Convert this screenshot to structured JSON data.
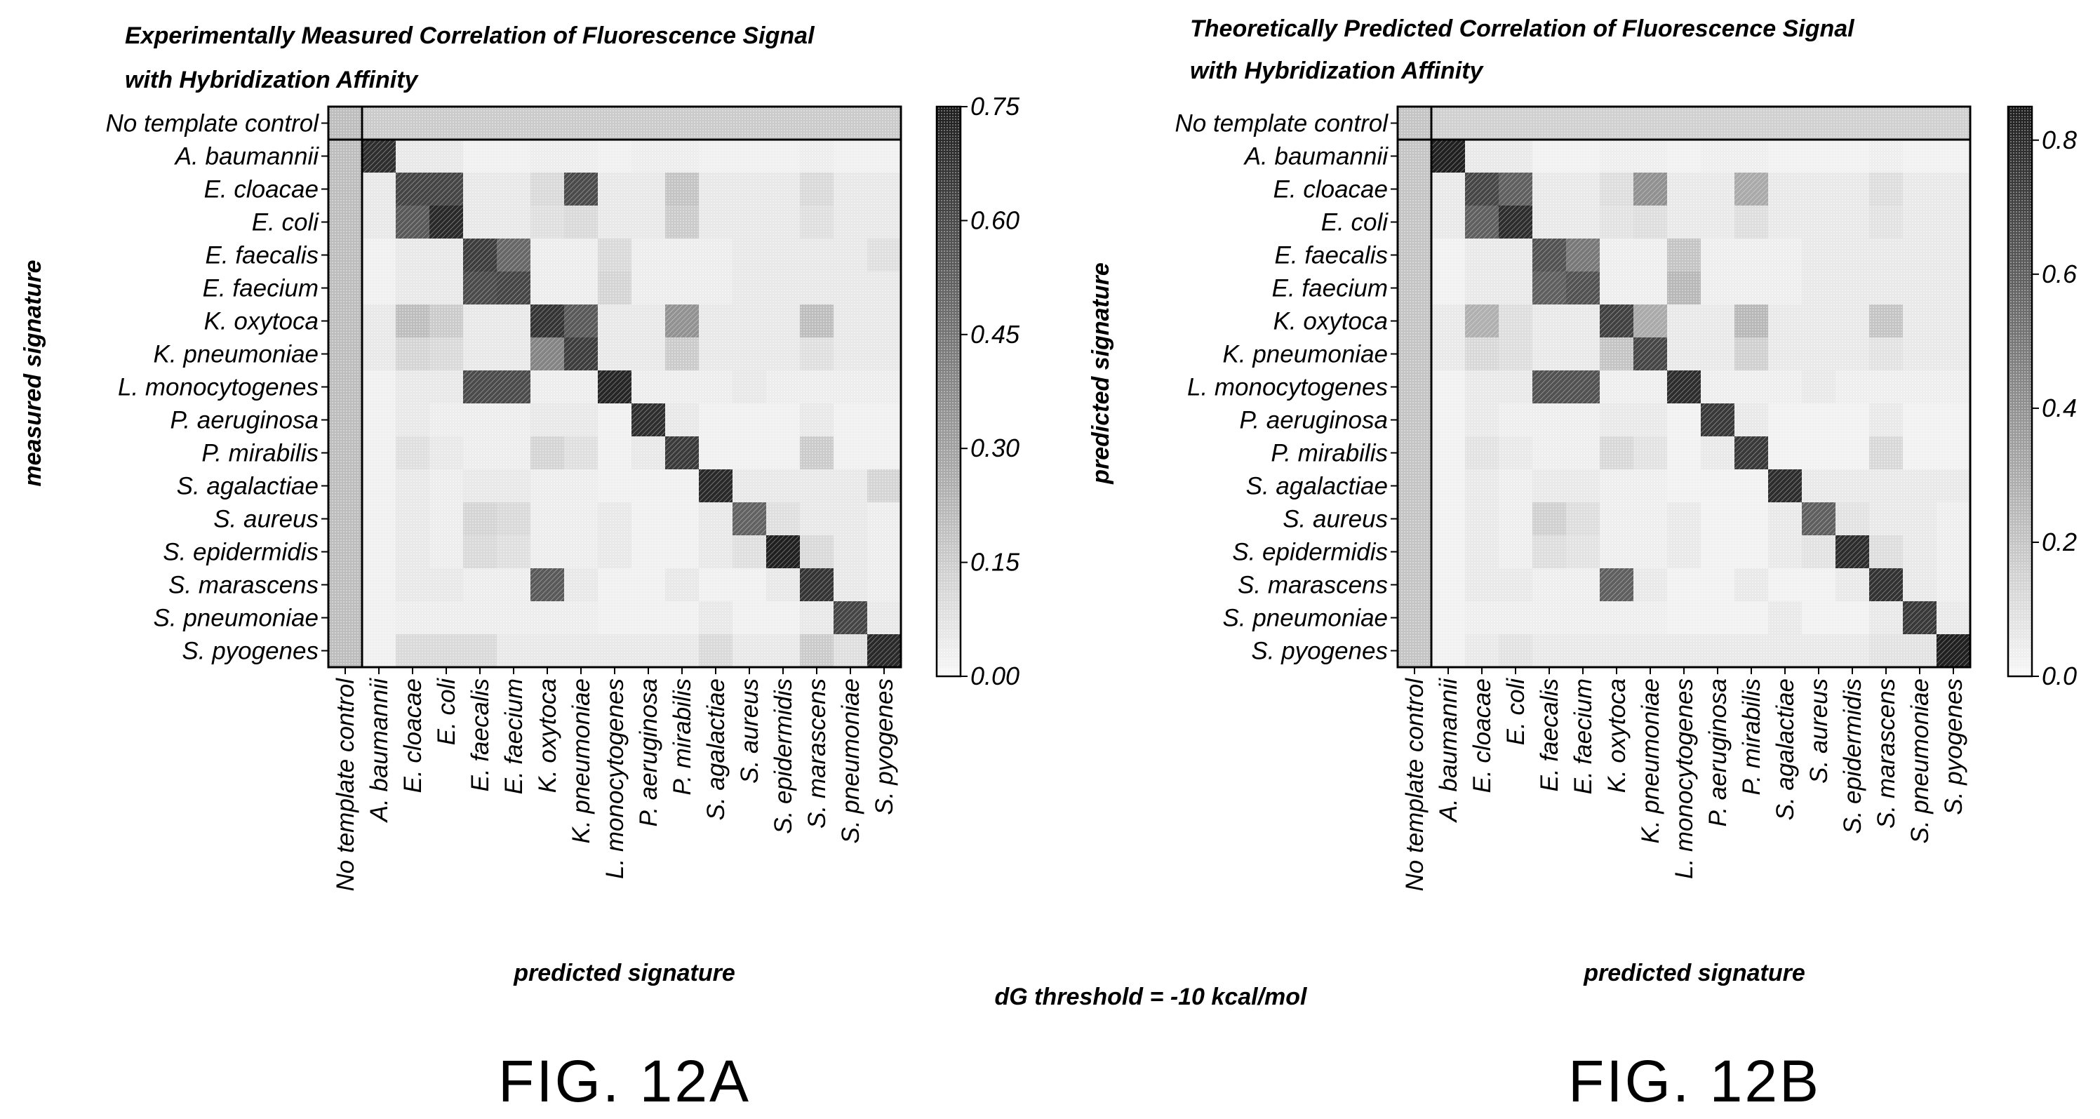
{
  "chart_data": [
    {
      "type": "heatmap",
      "title_lines": [
        "Experimentally Measured Correlation of Fluorescence Signal",
        "with Hybridization Affinity"
      ],
      "xlabel": "predicted signature",
      "ylabel": "measured signature",
      "categories": [
        "No template control",
        "A. baumannii",
        "E. cloacae",
        "E. coli",
        "E. faecalis",
        "E. faecium",
        "K. oxytoca",
        "K. pneumoniae",
        "L. monocytogenes",
        "P. aeruginosa",
        "P. mirabilis",
        "S. agalactiae",
        "S. aureus",
        "S. epidermidis",
        "S. marascens",
        "S. pneumoniae",
        "S. pyogenes"
      ],
      "values": [
        [
          0.2,
          0.15,
          0.15,
          0.15,
          0.15,
          0.15,
          0.15,
          0.15,
          0.15,
          0.15,
          0.15,
          0.15,
          0.15,
          0.15,
          0.15,
          0.15,
          0.15
        ],
        [
          0.2,
          0.7,
          0.05,
          0.05,
          0.02,
          0.02,
          0.03,
          0.03,
          0.02,
          0.03,
          0.03,
          0.02,
          0.02,
          0.02,
          0.03,
          0.02,
          0.02
        ],
        [
          0.2,
          0.05,
          0.62,
          0.62,
          0.05,
          0.05,
          0.1,
          0.6,
          0.05,
          0.05,
          0.18,
          0.05,
          0.05,
          0.05,
          0.1,
          0.05,
          0.05
        ],
        [
          0.2,
          0.05,
          0.55,
          0.72,
          0.05,
          0.05,
          0.08,
          0.1,
          0.05,
          0.05,
          0.15,
          0.05,
          0.05,
          0.05,
          0.08,
          0.05,
          0.05
        ],
        [
          0.2,
          0.02,
          0.05,
          0.05,
          0.65,
          0.5,
          0.03,
          0.03,
          0.1,
          0.03,
          0.03,
          0.03,
          0.05,
          0.05,
          0.05,
          0.05,
          0.08
        ],
        [
          0.2,
          0.02,
          0.05,
          0.05,
          0.6,
          0.62,
          0.03,
          0.03,
          0.12,
          0.03,
          0.03,
          0.03,
          0.05,
          0.05,
          0.05,
          0.05,
          0.05
        ],
        [
          0.2,
          0.05,
          0.2,
          0.15,
          0.05,
          0.05,
          0.68,
          0.55,
          0.05,
          0.05,
          0.35,
          0.05,
          0.05,
          0.05,
          0.2,
          0.05,
          0.05
        ],
        [
          0.2,
          0.05,
          0.12,
          0.1,
          0.05,
          0.05,
          0.4,
          0.65,
          0.05,
          0.05,
          0.15,
          0.05,
          0.05,
          0.05,
          0.08,
          0.05,
          0.05
        ],
        [
          0.2,
          0.02,
          0.05,
          0.05,
          0.6,
          0.6,
          0.03,
          0.03,
          0.73,
          0.03,
          0.03,
          0.03,
          0.05,
          0.03,
          0.03,
          0.03,
          0.03
        ],
        [
          0.2,
          0.02,
          0.05,
          0.03,
          0.03,
          0.03,
          0.05,
          0.05,
          0.02,
          0.7,
          0.05,
          0.02,
          0.02,
          0.02,
          0.05,
          0.02,
          0.02
        ],
        [
          0.2,
          0.02,
          0.08,
          0.05,
          0.03,
          0.03,
          0.12,
          0.08,
          0.02,
          0.05,
          0.66,
          0.02,
          0.02,
          0.02,
          0.15,
          0.02,
          0.02
        ],
        [
          0.2,
          0.02,
          0.05,
          0.03,
          0.05,
          0.05,
          0.03,
          0.03,
          0.02,
          0.02,
          0.02,
          0.72,
          0.05,
          0.05,
          0.05,
          0.05,
          0.12
        ],
        [
          0.2,
          0.02,
          0.05,
          0.03,
          0.12,
          0.1,
          0.03,
          0.03,
          0.05,
          0.02,
          0.02,
          0.05,
          0.52,
          0.08,
          0.05,
          0.05,
          0.03
        ],
        [
          0.2,
          0.02,
          0.05,
          0.03,
          0.1,
          0.08,
          0.03,
          0.03,
          0.05,
          0.02,
          0.02,
          0.05,
          0.08,
          0.75,
          0.1,
          0.05,
          0.03
        ],
        [
          0.2,
          0.02,
          0.05,
          0.05,
          0.03,
          0.03,
          0.55,
          0.05,
          0.02,
          0.02,
          0.05,
          0.02,
          0.02,
          0.05,
          0.68,
          0.05,
          0.03
        ],
        [
          0.2,
          0.02,
          0.03,
          0.03,
          0.03,
          0.03,
          0.03,
          0.03,
          0.02,
          0.02,
          0.02,
          0.05,
          0.02,
          0.02,
          0.05,
          0.62,
          0.05
        ],
        [
          0.2,
          0.02,
          0.1,
          0.1,
          0.1,
          0.05,
          0.05,
          0.05,
          0.05,
          0.05,
          0.05,
          0.1,
          0.05,
          0.05,
          0.15,
          0.08,
          0.72
        ]
      ],
      "colorbar": {
        "min": 0.0,
        "max": 0.75,
        "ticks": [
          "0.00",
          "0.15",
          "0.30",
          "0.45",
          "0.60",
          "0.75"
        ]
      },
      "caption": "FIG. 12A"
    },
    {
      "type": "heatmap",
      "title_lines": [
        "Theoretically Predicted Correlation of Fluorescence Signal",
        "with Hybridization Affinity"
      ],
      "xlabel": "predicted signature",
      "ylabel": "predicted signature",
      "categories": [
        "No template control",
        "A. baumannii",
        "E. cloacae",
        "E. coli",
        "E. faecalis",
        "E. faecium",
        "K. oxytoca",
        "K. pneumoniae",
        "L. monocytogenes",
        "P. aeruginosa",
        "P. mirabilis",
        "S. agalactiae",
        "S. aureus",
        "S. epidermidis",
        "S. marascens",
        "S. pneumoniae",
        "S. pyogenes"
      ],
      "values": [
        [
          0.2,
          0.15,
          0.15,
          0.15,
          0.15,
          0.15,
          0.15,
          0.15,
          0.15,
          0.15,
          0.15,
          0.15,
          0.15,
          0.15,
          0.15,
          0.15,
          0.15
        ],
        [
          0.2,
          0.85,
          0.05,
          0.05,
          0.02,
          0.02,
          0.03,
          0.03,
          0.02,
          0.03,
          0.03,
          0.02,
          0.02,
          0.02,
          0.03,
          0.02,
          0.02
        ],
        [
          0.2,
          0.05,
          0.7,
          0.6,
          0.05,
          0.05,
          0.1,
          0.4,
          0.05,
          0.05,
          0.3,
          0.05,
          0.05,
          0.05,
          0.1,
          0.05,
          0.05
        ],
        [
          0.2,
          0.05,
          0.6,
          0.8,
          0.05,
          0.05,
          0.08,
          0.1,
          0.05,
          0.05,
          0.1,
          0.05,
          0.05,
          0.05,
          0.08,
          0.05,
          0.05
        ],
        [
          0.2,
          0.02,
          0.05,
          0.05,
          0.65,
          0.5,
          0.03,
          0.03,
          0.2,
          0.03,
          0.03,
          0.03,
          0.05,
          0.05,
          0.05,
          0.05,
          0.05
        ],
        [
          0.2,
          0.02,
          0.05,
          0.05,
          0.6,
          0.65,
          0.03,
          0.03,
          0.25,
          0.03,
          0.03,
          0.03,
          0.05,
          0.05,
          0.05,
          0.05,
          0.05
        ],
        [
          0.2,
          0.05,
          0.28,
          0.1,
          0.05,
          0.05,
          0.72,
          0.3,
          0.05,
          0.05,
          0.25,
          0.05,
          0.05,
          0.05,
          0.2,
          0.05,
          0.05
        ],
        [
          0.2,
          0.05,
          0.12,
          0.1,
          0.05,
          0.05,
          0.2,
          0.7,
          0.05,
          0.05,
          0.15,
          0.05,
          0.05,
          0.05,
          0.08,
          0.05,
          0.05
        ],
        [
          0.2,
          0.02,
          0.05,
          0.05,
          0.65,
          0.65,
          0.03,
          0.03,
          0.8,
          0.03,
          0.03,
          0.03,
          0.05,
          0.03,
          0.03,
          0.03,
          0.03
        ],
        [
          0.2,
          0.02,
          0.05,
          0.03,
          0.03,
          0.03,
          0.05,
          0.05,
          0.02,
          0.75,
          0.05,
          0.02,
          0.02,
          0.02,
          0.05,
          0.02,
          0.02
        ],
        [
          0.2,
          0.02,
          0.08,
          0.05,
          0.03,
          0.03,
          0.12,
          0.08,
          0.02,
          0.05,
          0.75,
          0.02,
          0.02,
          0.02,
          0.12,
          0.02,
          0.02
        ],
        [
          0.2,
          0.02,
          0.05,
          0.03,
          0.05,
          0.05,
          0.03,
          0.03,
          0.02,
          0.02,
          0.02,
          0.8,
          0.05,
          0.05,
          0.05,
          0.05,
          0.05
        ],
        [
          0.2,
          0.02,
          0.05,
          0.03,
          0.15,
          0.1,
          0.03,
          0.03,
          0.05,
          0.02,
          0.02,
          0.05,
          0.6,
          0.08,
          0.05,
          0.05,
          0.03
        ],
        [
          0.2,
          0.02,
          0.05,
          0.03,
          0.1,
          0.08,
          0.03,
          0.03,
          0.05,
          0.02,
          0.02,
          0.05,
          0.08,
          0.8,
          0.1,
          0.05,
          0.03
        ],
        [
          0.2,
          0.02,
          0.05,
          0.05,
          0.03,
          0.03,
          0.6,
          0.05,
          0.02,
          0.02,
          0.05,
          0.02,
          0.02,
          0.05,
          0.78,
          0.05,
          0.03
        ],
        [
          0.2,
          0.02,
          0.03,
          0.03,
          0.03,
          0.03,
          0.03,
          0.03,
          0.02,
          0.02,
          0.02,
          0.05,
          0.02,
          0.02,
          0.05,
          0.75,
          0.05
        ],
        [
          0.2,
          0.02,
          0.05,
          0.08,
          0.05,
          0.05,
          0.05,
          0.05,
          0.05,
          0.05,
          0.05,
          0.05,
          0.05,
          0.05,
          0.08,
          0.08,
          0.85
        ]
      ],
      "colorbar": {
        "min": 0.0,
        "max": 0.85,
        "ticks": [
          "0.0",
          "0.2",
          "0.4",
          "0.6",
          "0.8"
        ]
      },
      "caption": "FIG. 12B"
    }
  ],
  "footer_note": "dG threshold = -10 kcal/mol"
}
